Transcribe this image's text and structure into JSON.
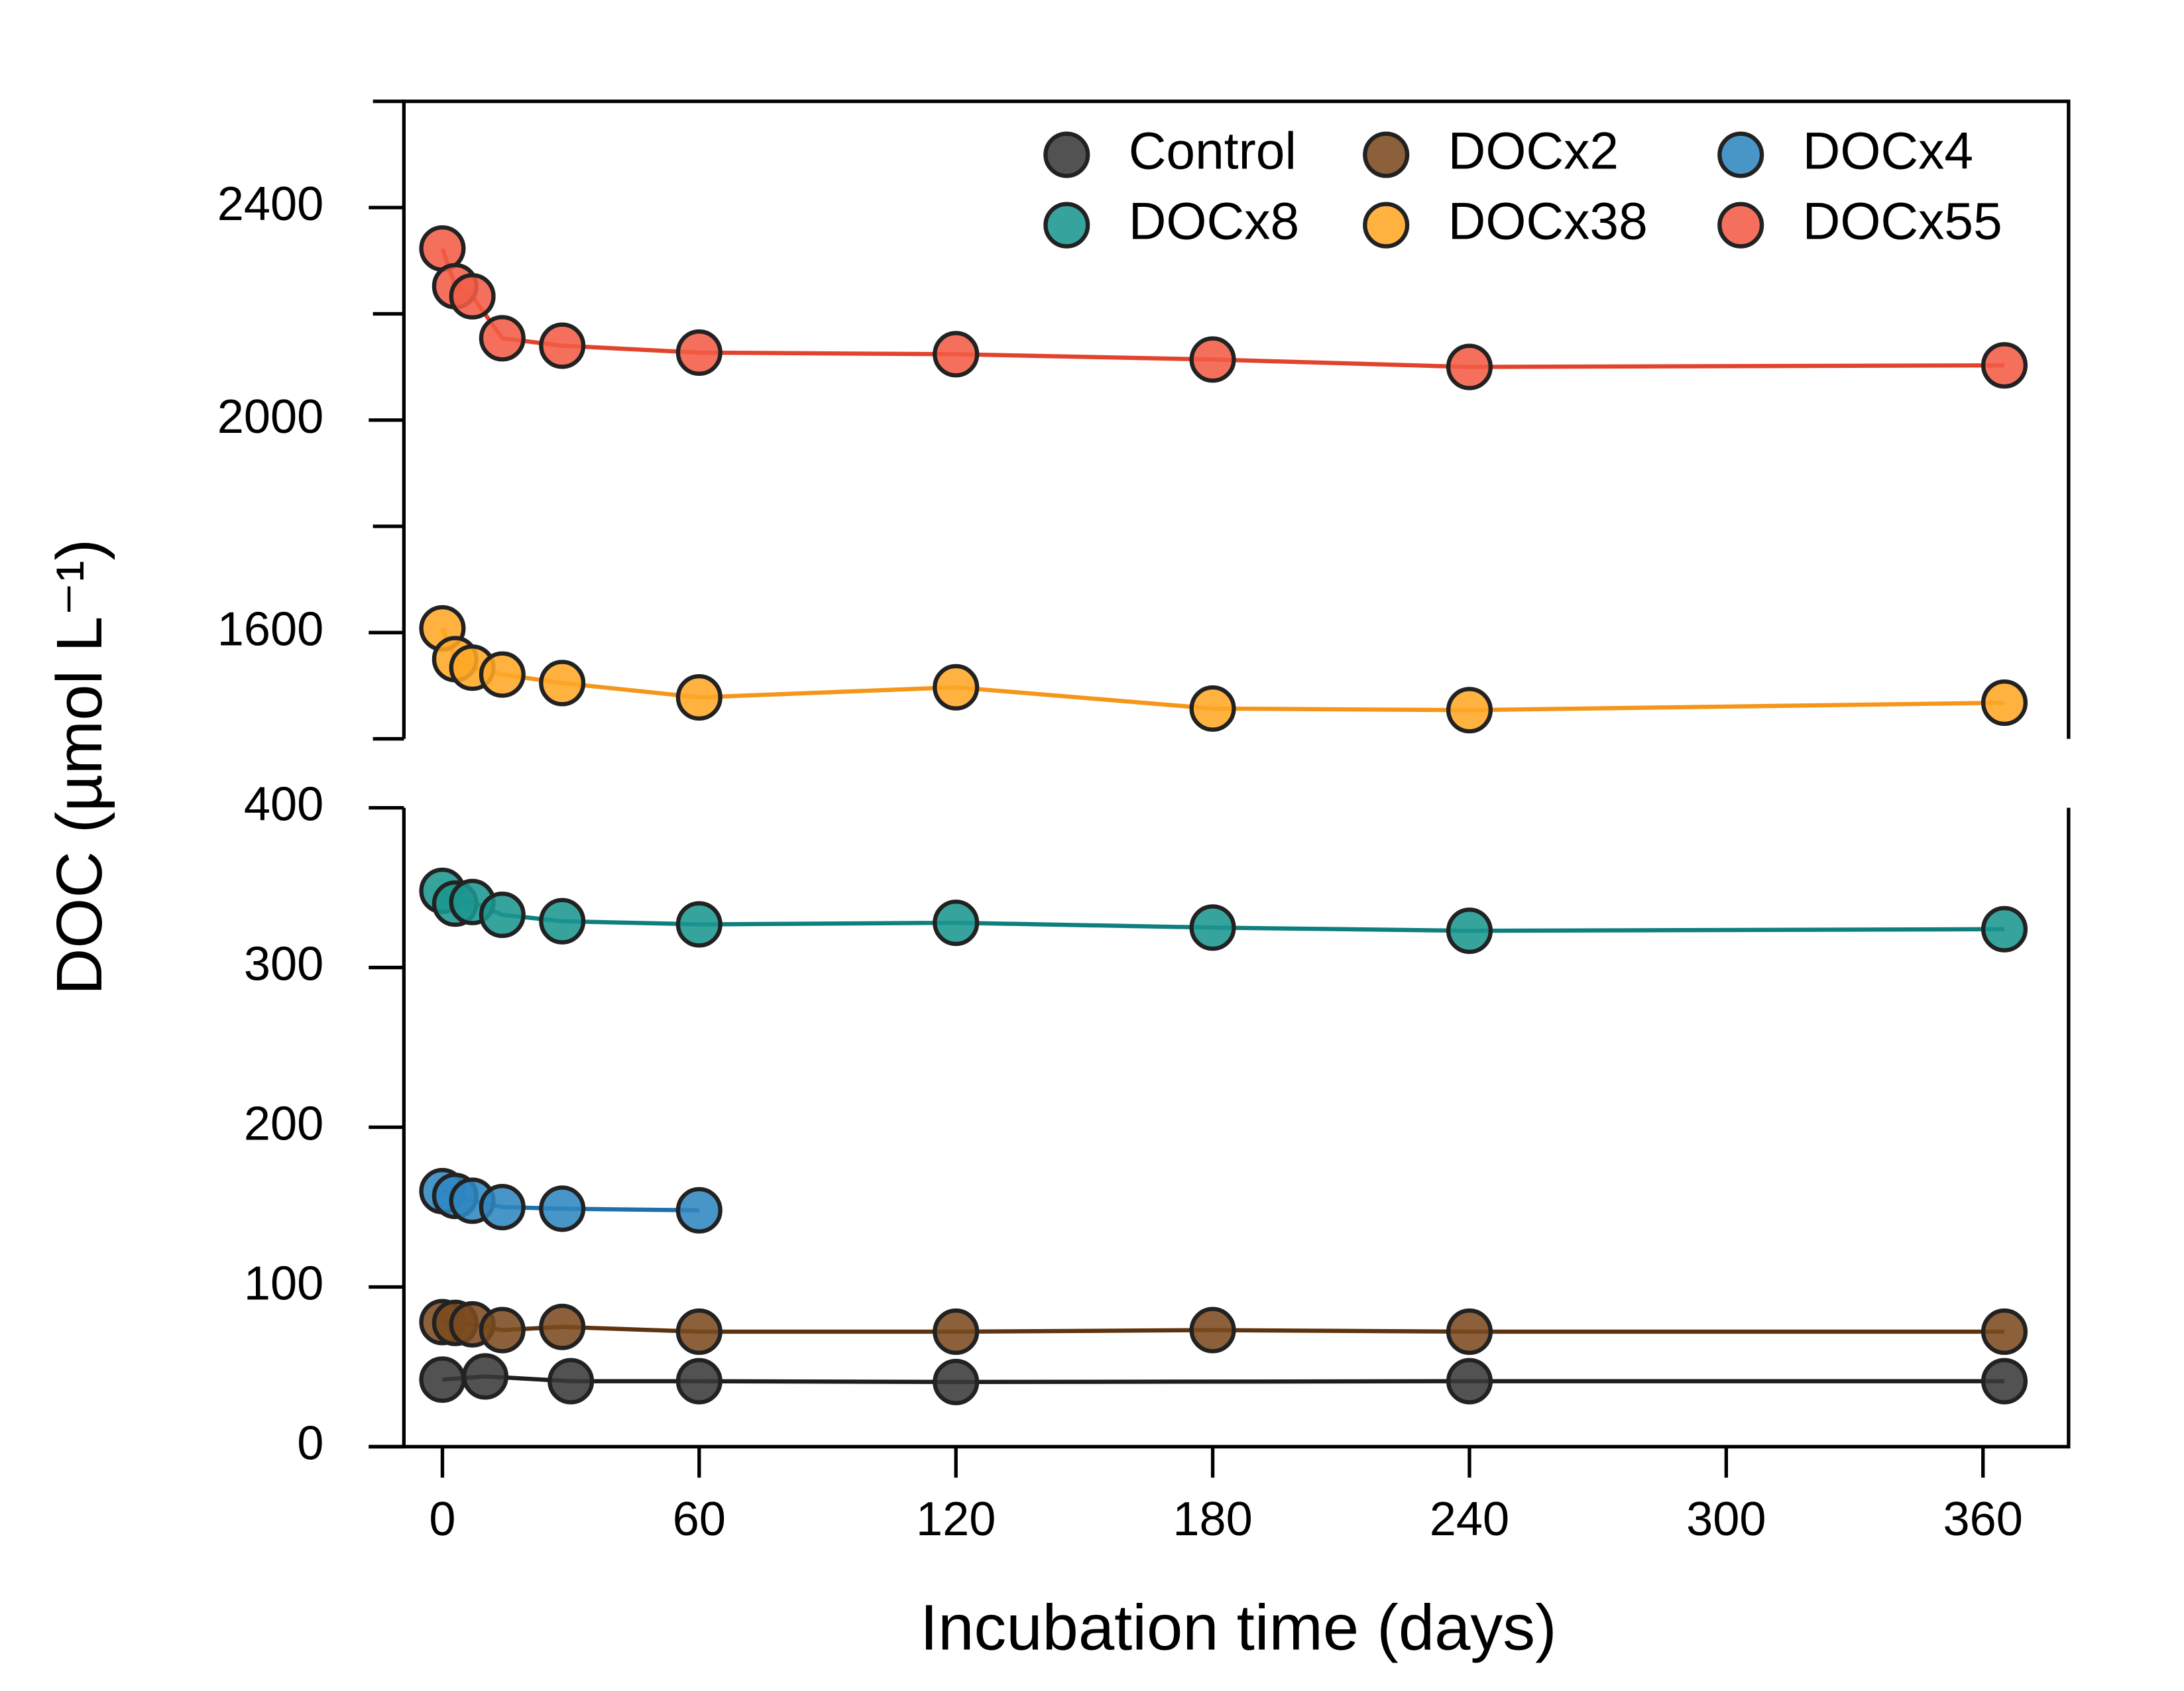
{
  "chart_data": [
    {
      "type": "line",
      "ylabel": "DOC (µmol L⁻¹)",
      "xlim": [
        -9,
        380
      ],
      "ylim": [
        1400,
        2600
      ],
      "yticks": [
        1600,
        2000,
        2400
      ],
      "minor_yticks": [
        1400,
        1800,
        2200,
        2600
      ],
      "series": [
        {
          "name": "DOCx38",
          "color": "#ffa726",
          "line_color": "#f5961a",
          "x": [
            0,
            3,
            7,
            14,
            28,
            60,
            120,
            180,
            240,
            365
          ],
          "values": [
            1608,
            1550,
            1534,
            1521,
            1505,
            1478,
            1497,
            1457,
            1454,
            1468
          ]
        },
        {
          "name": "DOCx55",
          "color": "#f25c45",
          "line_color": "#e2432c",
          "x": [
            0,
            3,
            7,
            14,
            28,
            60,
            120,
            180,
            240,
            365
          ],
          "values": [
            2323,
            2252,
            2233,
            2154,
            2140,
            2127,
            2124,
            2114,
            2100,
            2103
          ]
        }
      ]
    },
    {
      "type": "line",
      "xlabel": "Incubation time (days)",
      "xlim": [
        -9,
        380
      ],
      "xticks": [
        0,
        60,
        120,
        180,
        240,
        300,
        360
      ],
      "ylim": [
        0,
        400
      ],
      "yticks": [
        0,
        100,
        200,
        300,
        400
      ],
      "series": [
        {
          "name": "Control",
          "color": "#3a3a3a",
          "line_color": "#1e1e1e",
          "x": [
            0,
            10,
            30,
            60,
            120,
            240,
            365
          ],
          "values": [
            42,
            44,
            41,
            41,
            40.5,
            41,
            41
          ]
        },
        {
          "name": "DOCx2",
          "color": "#7b4a1f",
          "line_color": "#5e3410",
          "x": [
            0,
            3,
            7,
            14,
            28,
            60,
            120,
            180,
            240,
            365
          ],
          "values": [
            78,
            77.5,
            76.6,
            73,
            75,
            72,
            72,
            73,
            72,
            72
          ]
        },
        {
          "name": "DOCx4",
          "color": "#2f86c0",
          "line_color": "#1f6fa8",
          "x": [
            0,
            3,
            7,
            14,
            28,
            60
          ],
          "values": [
            160,
            157,
            154,
            150,
            149,
            148
          ]
        },
        {
          "name": "DOCx8",
          "color": "#1b9690",
          "line_color": "#0e7f7d",
          "x": [
            0,
            3,
            7,
            14,
            28,
            60,
            120,
            180,
            240,
            365
          ],
          "values": [
            348,
            340,
            341,
            333,
            329,
            327,
            328,
            325,
            323,
            324
          ]
        }
      ]
    }
  ]
}
